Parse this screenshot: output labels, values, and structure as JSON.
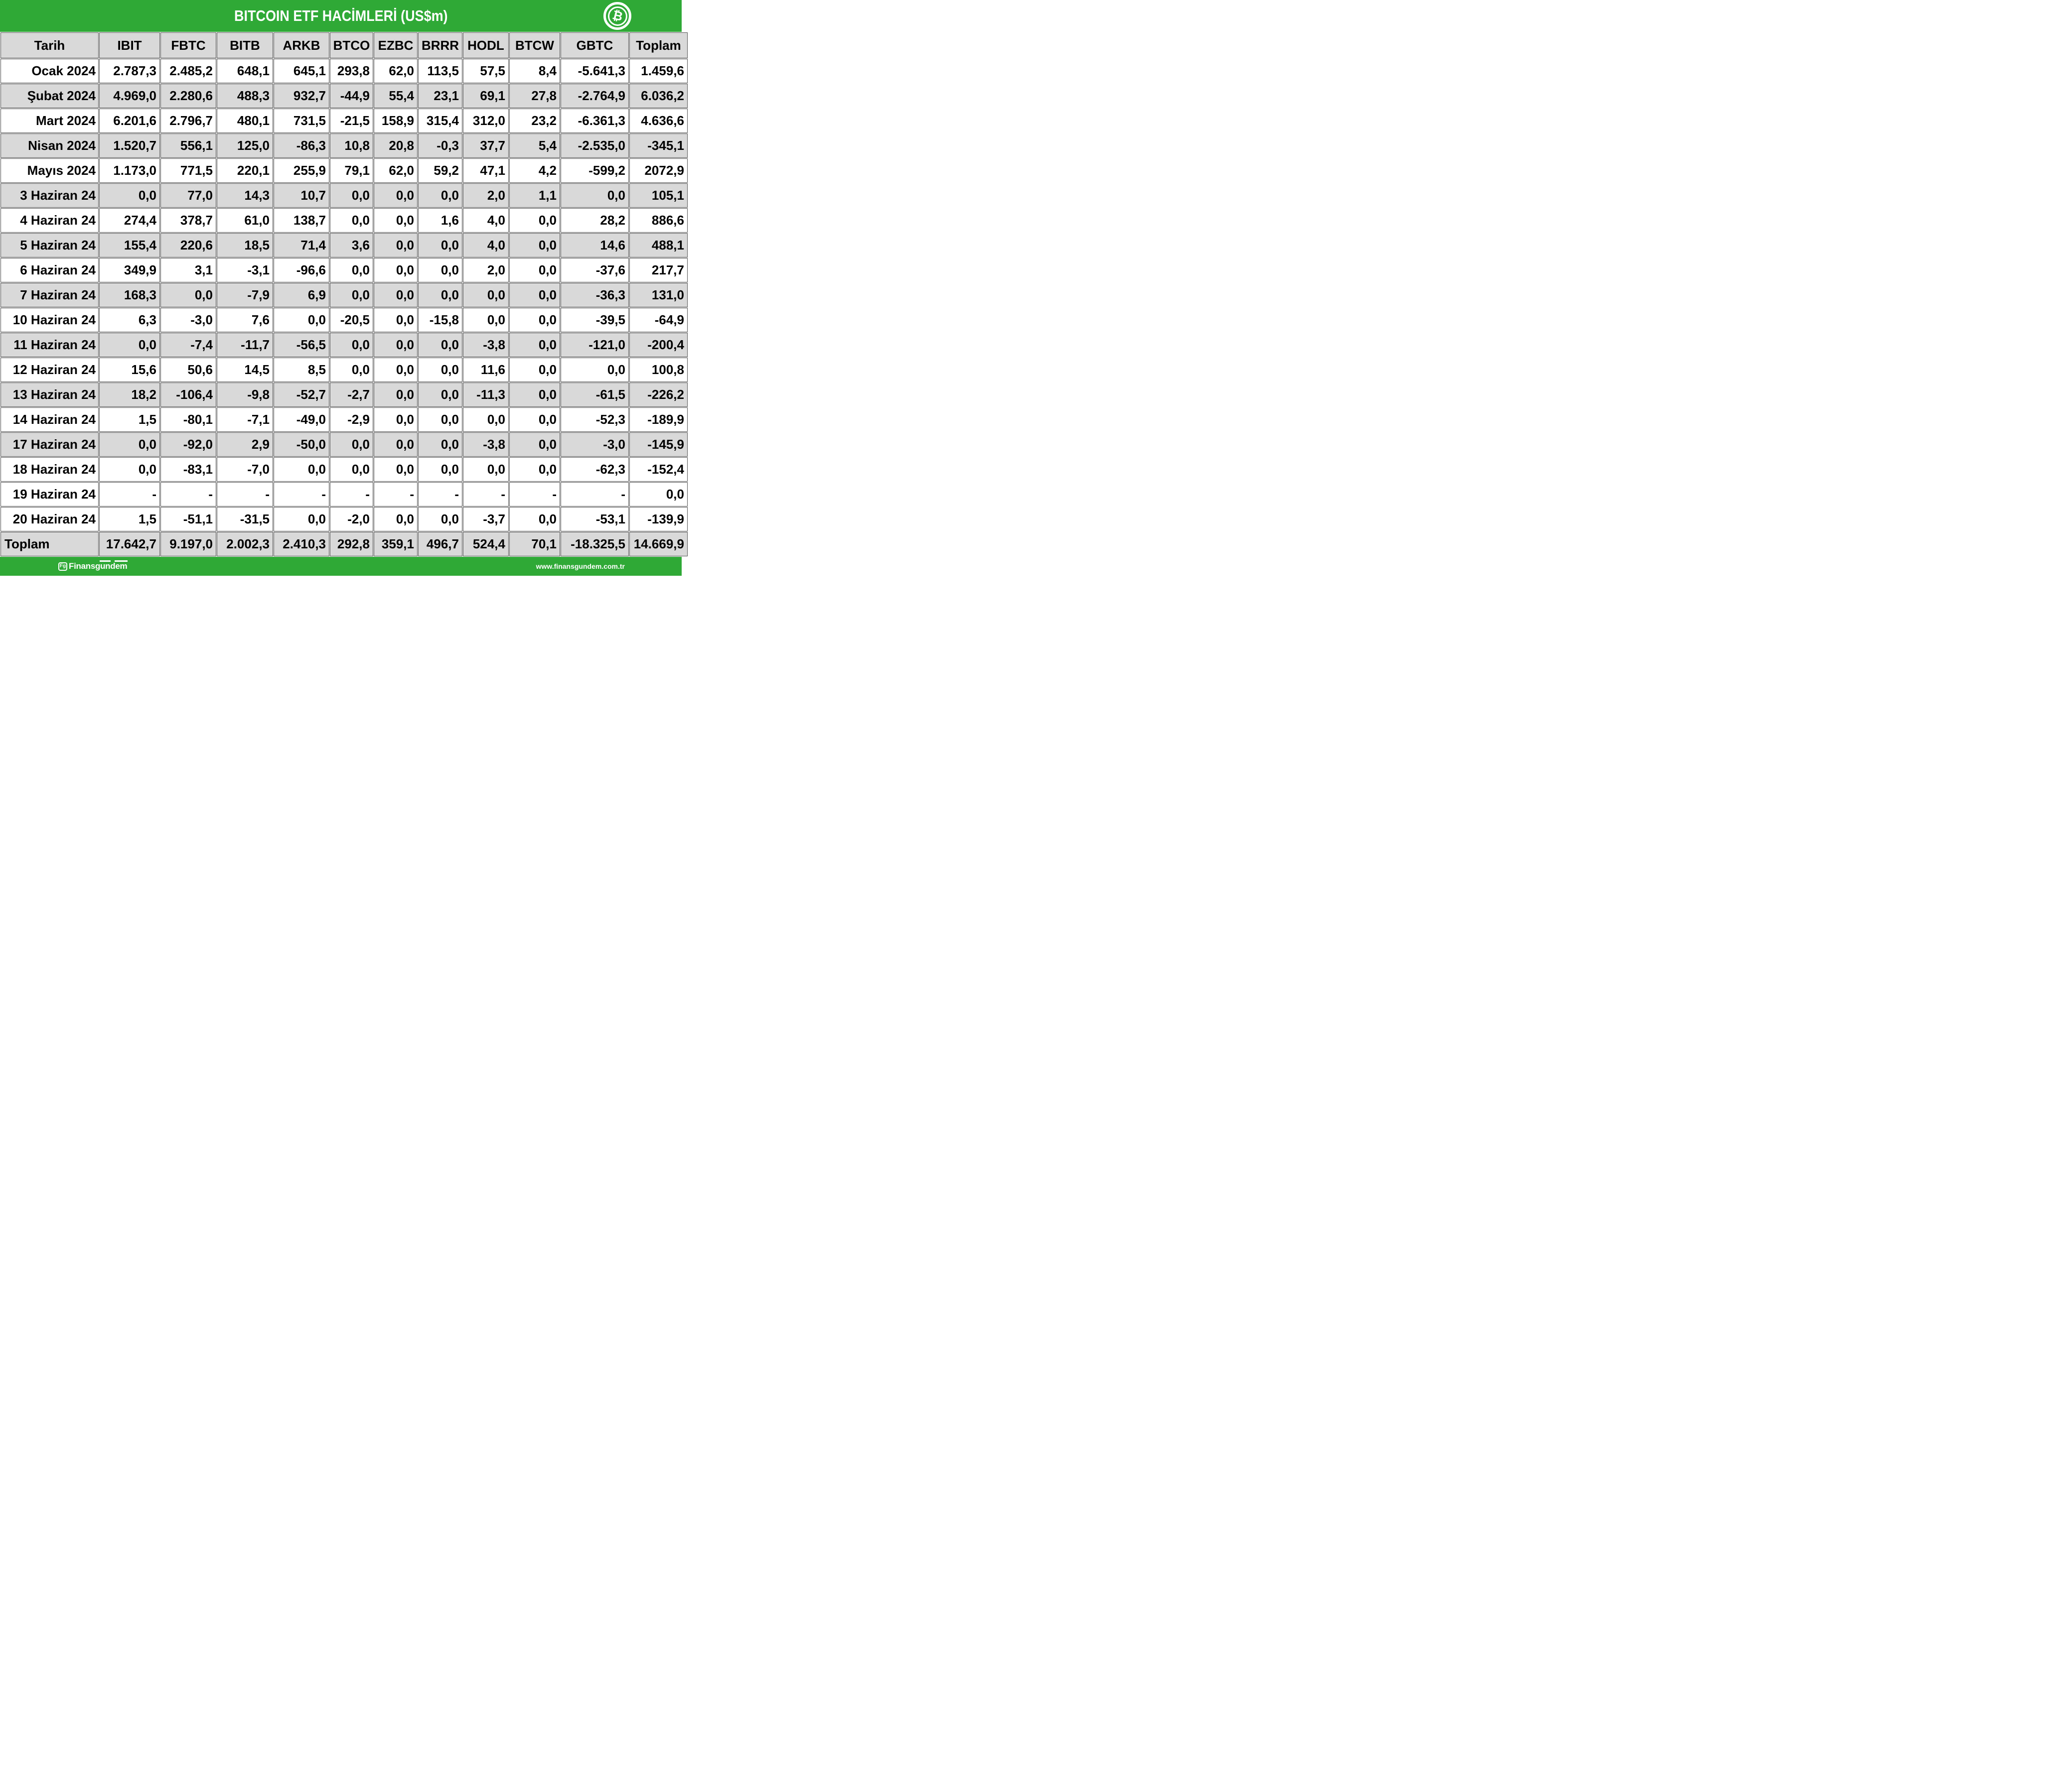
{
  "header": {
    "title": "BITCOIN ETF HACİMLERİ (US$m)",
    "icon_symbol": "₿"
  },
  "table": {
    "columns": [
      "Tarih",
      "IBIT",
      "FBTC",
      "BITB",
      "ARKB",
      "BTCO",
      "EZBC",
      "BRRR",
      "HODL",
      "BTCW",
      "GBTC",
      "Toplam"
    ],
    "rows": [
      {
        "label": "Ocak 2024",
        "shaded": false,
        "total": false,
        "values": [
          "2.787,3",
          "2.485,2",
          "648,1",
          "645,1",
          "293,8",
          "62,0",
          "113,5",
          "57,5",
          "8,4",
          "-5.641,3",
          "1.459,6"
        ]
      },
      {
        "label": "Şubat 2024",
        "shaded": true,
        "total": false,
        "values": [
          "4.969,0",
          "2.280,6",
          "488,3",
          "932,7",
          "-44,9",
          "55,4",
          "23,1",
          "69,1",
          "27,8",
          "-2.764,9",
          "6.036,2"
        ]
      },
      {
        "label": "Mart 2024",
        "shaded": false,
        "total": false,
        "values": [
          "6.201,6",
          "2.796,7",
          "480,1",
          "731,5",
          "-21,5",
          "158,9",
          "315,4",
          "312,0",
          "23,2",
          "-6.361,3",
          "4.636,6"
        ]
      },
      {
        "label": "Nisan 2024",
        "shaded": true,
        "total": false,
        "values": [
          "1.520,7",
          "556,1",
          "125,0",
          "-86,3",
          "10,8",
          "20,8",
          "-0,3",
          "37,7",
          "5,4",
          "-2.535,0",
          "-345,1"
        ]
      },
      {
        "label": "Mayıs 2024",
        "shaded": false,
        "total": false,
        "values": [
          "1.173,0",
          "771,5",
          "220,1",
          "255,9",
          "79,1",
          "62,0",
          "59,2",
          "47,1",
          "4,2",
          "-599,2",
          "2072,9"
        ]
      },
      {
        "label": "3 Haziran 24",
        "shaded": true,
        "total": false,
        "values": [
          "0,0",
          "77,0",
          "14,3",
          "10,7",
          "0,0",
          "0,0",
          "0,0",
          "2,0",
          "1,1",
          "0,0",
          "105,1"
        ]
      },
      {
        "label": "4 Haziran 24",
        "shaded": false,
        "total": false,
        "values": [
          "274,4",
          "378,7",
          "61,0",
          "138,7",
          "0,0",
          "0,0",
          "1,6",
          "4,0",
          "0,0",
          "28,2",
          "886,6"
        ]
      },
      {
        "label": "5 Haziran 24",
        "shaded": true,
        "total": false,
        "values": [
          "155,4",
          "220,6",
          "18,5",
          "71,4",
          "3,6",
          "0,0",
          "0,0",
          "4,0",
          "0,0",
          "14,6",
          "488,1"
        ]
      },
      {
        "label": "6 Haziran 24",
        "shaded": false,
        "total": false,
        "values": [
          "349,9",
          "3,1",
          "-3,1",
          "-96,6",
          "0,0",
          "0,0",
          "0,0",
          "2,0",
          "0,0",
          "-37,6",
          "217,7"
        ]
      },
      {
        "label": "7 Haziran 24",
        "shaded": true,
        "total": false,
        "values": [
          "168,3",
          "0,0",
          "-7,9",
          "6,9",
          "0,0",
          "0,0",
          "0,0",
          "0,0",
          "0,0",
          "-36,3",
          "131,0"
        ]
      },
      {
        "label": "10 Haziran 24",
        "shaded": false,
        "total": false,
        "values": [
          "6,3",
          "-3,0",
          "7,6",
          "0,0",
          "-20,5",
          "0,0",
          "-15,8",
          "0,0",
          "0,0",
          "-39,5",
          "-64,9"
        ]
      },
      {
        "label": "11 Haziran 24",
        "shaded": true,
        "total": false,
        "values": [
          "0,0",
          "-7,4",
          "-11,7",
          "-56,5",
          "0,0",
          "0,0",
          "0,0",
          "-3,8",
          "0,0",
          "-121,0",
          "-200,4"
        ]
      },
      {
        "label": "12 Haziran 24",
        "shaded": false,
        "total": false,
        "values": [
          "15,6",
          "50,6",
          "14,5",
          "8,5",
          "0,0",
          "0,0",
          "0,0",
          "11,6",
          "0,0",
          "0,0",
          "100,8"
        ]
      },
      {
        "label": "13 Haziran 24",
        "shaded": true,
        "total": false,
        "values": [
          "18,2",
          "-106,4",
          "-9,8",
          "-52,7",
          "-2,7",
          "0,0",
          "0,0",
          "-11,3",
          "0,0",
          "-61,5",
          "-226,2"
        ]
      },
      {
        "label": "14 Haziran 24",
        "shaded": false,
        "total": false,
        "values": [
          "1,5",
          "-80,1",
          "-7,1",
          "-49,0",
          "-2,9",
          "0,0",
          "0,0",
          "0,0",
          "0,0",
          "-52,3",
          "-189,9"
        ]
      },
      {
        "label": "17 Haziran 24",
        "shaded": true,
        "total": false,
        "values": [
          "0,0",
          "-92,0",
          "2,9",
          "-50,0",
          "0,0",
          "0,0",
          "0,0",
          "-3,8",
          "0,0",
          "-3,0",
          "-145,9"
        ]
      },
      {
        "label": "18 Haziran 24",
        "shaded": false,
        "total": false,
        "values": [
          "0,0",
          "-83,1",
          "-7,0",
          "0,0",
          "0,0",
          "0,0",
          "0,0",
          "0,0",
          "0,0",
          "-62,3",
          "-152,4"
        ]
      },
      {
        "label": "19 Haziran 24",
        "shaded": false,
        "total": false,
        "values": [
          "-",
          "-",
          "-",
          "-",
          "-",
          "-",
          "-",
          "-",
          "-",
          "-",
          "0,0"
        ]
      },
      {
        "label": "20 Haziran 24",
        "shaded": false,
        "total": false,
        "values": [
          "1,5",
          "-51,1",
          "-31,5",
          "0,0",
          "-2,0",
          "0,0",
          "0,0",
          "-3,7",
          "0,0",
          "-53,1",
          "-139,9"
        ]
      },
      {
        "label": "Toplam",
        "shaded": true,
        "total": true,
        "values": [
          "17.642,7",
          "9.197,0",
          "2.002,3",
          "2.410,3",
          "292,8",
          "359,1",
          "496,7",
          "524,4",
          "70,1",
          "-18.325,5",
          "14.669,9"
        ]
      }
    ]
  },
  "chart_data": {
    "type": "table",
    "title": "BITCOIN ETF HACİMLERİ (US$m)",
    "unit": "US$ million",
    "columns": [
      "IBIT",
      "FBTC",
      "BITB",
      "ARKB",
      "BTCO",
      "EZBC",
      "BRRR",
      "HODL",
      "BTCW",
      "GBTC",
      "Toplam"
    ],
    "categories": [
      "Ocak 2024",
      "Şubat 2024",
      "Mart 2024",
      "Nisan 2024",
      "Mayıs 2024",
      "3 Haziran 24",
      "4 Haziran 24",
      "5 Haziran 24",
      "6 Haziran 24",
      "7 Haziran 24",
      "10 Haziran 24",
      "11 Haziran 24",
      "12 Haziran 24",
      "13 Haziran 24",
      "14 Haziran 24",
      "17 Haziran 24",
      "18 Haziran 24",
      "19 Haziran 24",
      "20 Haziran 24",
      "Toplam"
    ],
    "rows": [
      [
        2787.3,
        2485.2,
        648.1,
        645.1,
        293.8,
        62.0,
        113.5,
        57.5,
        8.4,
        -5641.3,
        1459.6
      ],
      [
        4969.0,
        2280.6,
        488.3,
        932.7,
        -44.9,
        55.4,
        23.1,
        69.1,
        27.8,
        -2764.9,
        6036.2
      ],
      [
        6201.6,
        2796.7,
        480.1,
        731.5,
        -21.5,
        158.9,
        315.4,
        312.0,
        23.2,
        -6361.3,
        4636.6
      ],
      [
        1520.7,
        556.1,
        125.0,
        -86.3,
        10.8,
        20.8,
        -0.3,
        37.7,
        5.4,
        -2535.0,
        -345.1
      ],
      [
        1173.0,
        771.5,
        220.1,
        255.9,
        79.1,
        62.0,
        59.2,
        47.1,
        4.2,
        -599.2,
        2072.9
      ],
      [
        0.0,
        77.0,
        14.3,
        10.7,
        0.0,
        0.0,
        0.0,
        2.0,
        1.1,
        0.0,
        105.1
      ],
      [
        274.4,
        378.7,
        61.0,
        138.7,
        0.0,
        0.0,
        1.6,
        4.0,
        0.0,
        28.2,
        886.6
      ],
      [
        155.4,
        220.6,
        18.5,
        71.4,
        3.6,
        0.0,
        0.0,
        4.0,
        0.0,
        14.6,
        488.1
      ],
      [
        349.9,
        3.1,
        -3.1,
        -96.6,
        0.0,
        0.0,
        0.0,
        2.0,
        0.0,
        -37.6,
        217.7
      ],
      [
        168.3,
        0.0,
        -7.9,
        6.9,
        0.0,
        0.0,
        0.0,
        0.0,
        0.0,
        -36.3,
        131.0
      ],
      [
        6.3,
        -3.0,
        7.6,
        0.0,
        -20.5,
        0.0,
        -15.8,
        0.0,
        0.0,
        -39.5,
        -64.9
      ],
      [
        0.0,
        -7.4,
        -11.7,
        -56.5,
        0.0,
        0.0,
        0.0,
        -3.8,
        0.0,
        -121.0,
        -200.4
      ],
      [
        15.6,
        50.6,
        14.5,
        8.5,
        0.0,
        0.0,
        0.0,
        11.6,
        0.0,
        0.0,
        100.8
      ],
      [
        18.2,
        -106.4,
        -9.8,
        -52.7,
        -2.7,
        0.0,
        0.0,
        -11.3,
        0.0,
        -61.5,
        -226.2
      ],
      [
        1.5,
        -80.1,
        -7.1,
        -49.0,
        -2.9,
        0.0,
        0.0,
        0.0,
        0.0,
        -52.3,
        -189.9
      ],
      [
        0.0,
        -92.0,
        2.9,
        -50.0,
        0.0,
        0.0,
        0.0,
        -3.8,
        0.0,
        -3.0,
        -145.9
      ],
      [
        0.0,
        -83.1,
        -7.0,
        0.0,
        0.0,
        0.0,
        0.0,
        0.0,
        0.0,
        -62.3,
        -152.4
      ],
      [
        null,
        null,
        null,
        null,
        null,
        null,
        null,
        null,
        null,
        null,
        0.0
      ],
      [
        1.5,
        -51.1,
        -31.5,
        0.0,
        -2.0,
        0.0,
        0.0,
        -3.7,
        0.0,
        -53.1,
        -139.9
      ],
      [
        17642.7,
        9197.0,
        2002.3,
        2410.3,
        292.8,
        359.1,
        496.7,
        524.4,
        70.1,
        -18325.5,
        14669.9
      ]
    ]
  },
  "footer": {
    "brand_icon": "Fg",
    "brand_seg_head": "Finansg",
    "brand_seg_un": "un",
    "brand_seg_mid": "d",
    "brand_seg_em": "em",
    "url": "www.finansgundem.com.tr"
  },
  "colors": {
    "green": "#2FA936",
    "row_gray": "#D9D9D9",
    "border": "#555555",
    "title_text": "#FFFFFF",
    "cell_text": "#000000"
  }
}
